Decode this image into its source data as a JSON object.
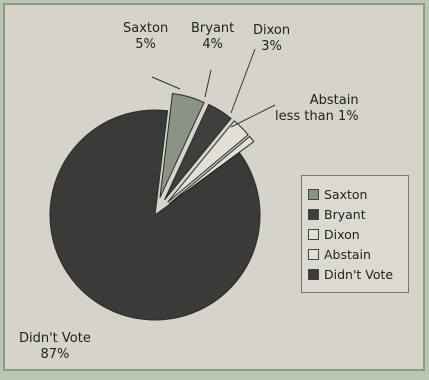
{
  "chart_data": {
    "type": "pie",
    "exploded": true,
    "slices": [
      {
        "name": "Saxton",
        "value": 5,
        "label": "Saxton",
        "pct_label": "5%",
        "color": "#8a9384"
      },
      {
        "name": "Bryant",
        "value": 4,
        "label": "Bryant",
        "pct_label": "4%",
        "color": "#3f3f3d"
      },
      {
        "name": "Dixon",
        "value": 3,
        "label": "Dixon",
        "pct_label": "3%",
        "color": "#e2dfd6"
      },
      {
        "name": "Abstain",
        "value": 1,
        "label": "Abstain",
        "pct_label": "less than 1%",
        "color": "#e2dfd6"
      },
      {
        "name": "Didn't Vote",
        "value": 87,
        "label": "Didn't Vote",
        "pct_label": "87%",
        "color": "#3a3a38"
      }
    ],
    "legend": {
      "placement": "right",
      "entries": [
        "Saxton",
        "Bryant",
        "Dixon",
        "Abstain",
        "Didn't Vote"
      ]
    }
  }
}
